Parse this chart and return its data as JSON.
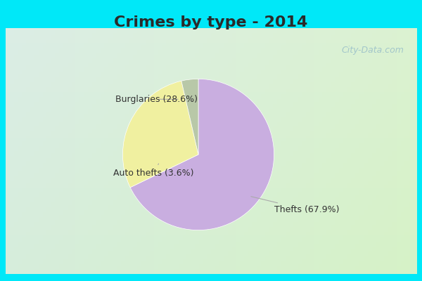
{
  "title": "Crimes by type - 2014",
  "slices": [
    {
      "label": "Thefts (67.9%)",
      "value": 67.9,
      "color": "#c9aee0"
    },
    {
      "label": "Burglaries (28.6%)",
      "value": 28.6,
      "color": "#f0f0a0"
    },
    {
      "label": "Auto thefts (3.6%)",
      "value": 3.6,
      "color": "#b8c8a8"
    }
  ],
  "background_cyan": "#00e8f8",
  "background_inner_tl": "#c8e8e0",
  "background_inner_br": "#d0e8d0",
  "title_fontsize": 16,
  "title_fontweight": "bold",
  "title_color": "#2a2a2a",
  "label_fontsize": 9,
  "start_angle": 90,
  "watermark": "City-Data.com"
}
